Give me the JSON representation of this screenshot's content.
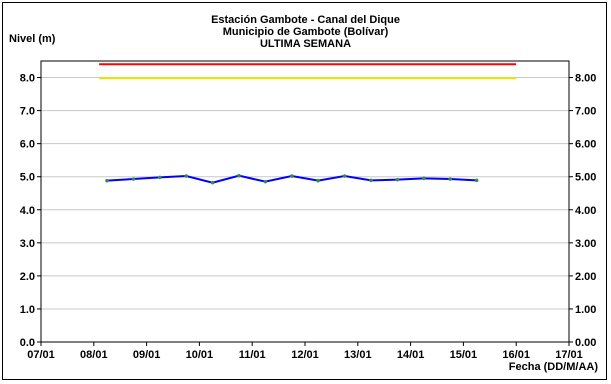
{
  "chart_data": {
    "type": "line",
    "title": "Estación Gambote - Canal del Dique",
    "subtitle": "Municipio de Gambote (Bolívar)",
    "subtitle2": "ULTIMA SEMANA",
    "ylabel": "Nivel (m)",
    "xlabel": "Fecha (DD/M/AA)",
    "ylim": [
      0,
      8.5
    ],
    "y_ticks_left": [
      "0.0",
      "1.0",
      "2.0",
      "3.0",
      "4.0",
      "5.0",
      "6.0",
      "7.0",
      "8.0"
    ],
    "y_ticks_right": [
      "0.00",
      "1.00",
      "2.00",
      "3.00",
      "4.00",
      "5.00",
      "6.00",
      "7.00",
      "8.00"
    ],
    "x_range": [
      0,
      10
    ],
    "x_ticks": [
      "07/01",
      "08/01",
      "09/01",
      "10/01",
      "11/01",
      "12/01",
      "13/01",
      "14/01",
      "15/01",
      "16/01",
      "17/01"
    ],
    "grid": true,
    "series": [
      {
        "color": "#0000ff",
        "x": [
          1.25,
          1.75,
          2.25,
          2.75,
          3.25,
          3.75,
          4.25,
          4.75,
          5.25,
          5.75,
          6.25,
          6.75,
          7.25,
          7.75,
          8.25
        ],
        "values": [
          4.88,
          4.93,
          4.98,
          5.02,
          4.82,
          5.03,
          4.85,
          5.02,
          4.88,
          5.02,
          4.89,
          4.91,
          4.95,
          4.93,
          4.89
        ]
      },
      {
        "color": "#ff0000",
        "x": [
          1.1,
          9.0
        ],
        "values": [
          8.4,
          8.4
        ]
      },
      {
        "color": "#e6e600",
        "x": [
          1.1,
          9.0
        ],
        "values": [
          7.98,
          7.98
        ]
      }
    ]
  }
}
